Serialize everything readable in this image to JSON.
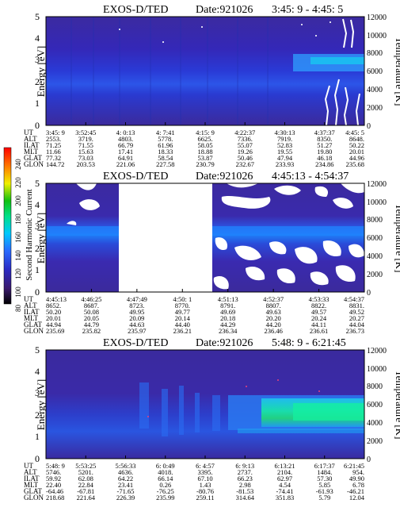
{
  "axis_labels": {
    "energy": "Energy [eV]",
    "temperature": "Temperature [K]"
  },
  "colorbar": {
    "label": "Second Harmonic Current",
    "ticks": [
      "80",
      "100",
      "120",
      "140",
      "160",
      "180",
      "200",
      "220",
      "240"
    ],
    "colors": [
      "#000000",
      "#3a1a6e",
      "#2b2bc4",
      "#2a6bff",
      "#00c8ff",
      "#00e08a",
      "#10c010",
      "#f0f000",
      "#ff7a00",
      "#ff0000"
    ]
  },
  "row_labels": [
    "UT",
    "ALT",
    "ILAT",
    "MLT",
    "GLAT",
    "GLON"
  ],
  "chart_data": [
    {
      "type": "heatmap",
      "title": "EXOS-D/TED",
      "date_label": "Date:921026",
      "time_range": "3:45: 9 - 4:45: 5",
      "y_left": {
        "label": "Energy [eV]",
        "range": [
          0,
          5
        ],
        "ticks": [
          "0",
          "1",
          "2",
          "3",
          "4",
          "5"
        ]
      },
      "y_right": {
        "label": "Temperature [K]",
        "range": [
          0,
          12000
        ],
        "ticks": [
          "0",
          "2000",
          "4000",
          "6000",
          "8000",
          "10000",
          "12000"
        ]
      },
      "intensity_band_eV": [
        2.0,
        3.0
      ],
      "columns": [
        [
          "3:45: 9",
          "2553.",
          "71.25",
          "11.66",
          "77.32",
          "144.72"
        ],
        [
          "3:52:45",
          "3719.",
          "71.55",
          "15.63",
          "73.03",
          "203.53"
        ],
        [
          "4: 0:13",
          "4803.",
          "66.79",
          "17.41",
          "64.91",
          "221.06"
        ],
        [
          "4: 7:41",
          "5778.",
          "61.96",
          "18.33",
          "58.54",
          "227.58"
        ],
        [
          "4:15: 9",
          "6625.",
          "58.05",
          "18.88",
          "53.87",
          "230.79"
        ],
        [
          "4:22:37",
          "7336.",
          "55.07",
          "19.26",
          "50.46",
          "232.67"
        ],
        [
          "4:30:13",
          "7919.",
          "52.83",
          "19.55",
          "47.94",
          "233.93"
        ],
        [
          "4:37:37",
          "8350.",
          "51.27",
          "19.80",
          "46.18",
          "234.86"
        ],
        [
          "4:45: 5",
          "8648.",
          "50.22",
          "20.01",
          "44.96",
          "235.68"
        ]
      ]
    },
    {
      "type": "heatmap",
      "title": "EXOS-D/TED",
      "date_label": "Date:921026",
      "time_range": "4:45:13 - 4:54:37",
      "y_left": {
        "label": "Energy [eV]",
        "range": [
          0,
          5
        ],
        "ticks": [
          "0",
          "1",
          "2",
          "3",
          "4",
          "5"
        ]
      },
      "y_right": {
        "label": "Temperature [K]",
        "range": [
          0,
          12000
        ],
        "ticks": [
          "0",
          "2000",
          "4000",
          "6000",
          "8000",
          "10000",
          "12000"
        ]
      },
      "intensity_band_eV": [
        2.3,
        3.2
      ],
      "columns": [
        [
          "4:45:13",
          "8652.",
          "50.20",
          "20.01",
          "44.94",
          "235.69"
        ],
        [
          "4:46:25",
          "8687.",
          "50.08",
          "20.05",
          "44.79",
          "235.82"
        ],
        [
          "4:47:49",
          "8723.",
          "49.95",
          "20.09",
          "44.63",
          "235.97"
        ],
        [
          "4:50: 1",
          "8770.",
          "49.77",
          "20.14",
          "44.40",
          "236.21"
        ],
        [
          "4:51:13",
          "8791.",
          "49.69",
          "20.18",
          "44.29",
          "236.34"
        ],
        [
          "4:52:37",
          "8807.",
          "49.63",
          "20.20",
          "44.20",
          "236.46"
        ],
        [
          "4:53:33",
          "8822.",
          "49.57",
          "20.24",
          "44.11",
          "236.61"
        ],
        [
          "4:54:37",
          "8831.",
          "49.52",
          "20.27",
          "44.04",
          "236.73"
        ]
      ]
    },
    {
      "type": "heatmap",
      "title": "EXOS-D/TED",
      "date_label": "Date:921026",
      "time_range": "5:48: 9 - 6:21:45",
      "y_left": {
        "label": "Energy [eV]",
        "range": [
          0,
          5
        ],
        "ticks": [
          "0",
          "1",
          "2",
          "3",
          "4",
          "5"
        ]
      },
      "y_right": {
        "label": "Temperature [K]",
        "range": [
          0,
          12000
        ],
        "ticks": [
          "0",
          "2000",
          "4000",
          "6000",
          "8000",
          "10000",
          "12000"
        ]
      },
      "intensity_band_eV": [
        1.4,
        2.6
      ],
      "columns": [
        [
          "5:48: 9",
          "5746.",
          "59.92",
          "22.40",
          "-64.46",
          "218.68"
        ],
        [
          "5:53:25",
          "5201.",
          "62.08",
          "22.84",
          "-67.81",
          "221.64"
        ],
        [
          "5:56:33",
          "4636.",
          "64.22",
          "23.41",
          "-71.65",
          "226.39"
        ],
        [
          "6: 0:49",
          "4018.",
          "66.14",
          "0.26",
          "-76.25",
          "235.99"
        ],
        [
          "6: 4:57",
          "3395.",
          "67.10",
          "1.43",
          "-80.76",
          "259.11"
        ],
        [
          "6: 9:13",
          "2737.",
          "66.23",
          "2.98",
          "-81.53",
          "314.64"
        ],
        [
          "6:13:21",
          "2104.",
          "62.97",
          "4.54",
          "-74.41",
          "351.83"
        ],
        [
          "6:17:37",
          "1484.",
          "57.30",
          "5.85",
          "-61.93",
          "5.79"
        ],
        [
          "6:21:45",
          "954.",
          "49.90",
          "6.78",
          "-46.21",
          "12.04"
        ]
      ]
    }
  ]
}
